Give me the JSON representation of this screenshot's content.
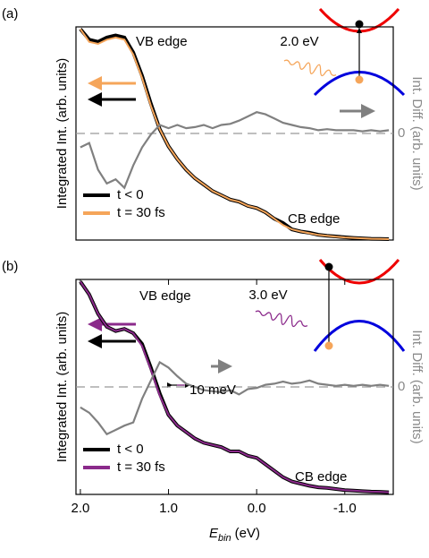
{
  "chart_data": [
    {
      "type": "line",
      "panel_label": "(a)",
      "ylabel": "Integrated Int. (arb. units)",
      "y2label": "Int. Diff. (arb. units)",
      "annotations": [
        "VB edge",
        "CB edge",
        "2.0 eV"
      ],
      "xlim": [
        2.05,
        -1.55
      ],
      "ylim": [
        0,
        1
      ],
      "y2lim": [
        -1,
        1
      ],
      "y2ticks": [
        0
      ],
      "legend": "lower left",
      "x": [
        2.0,
        1.9,
        1.8,
        1.7,
        1.6,
        1.5,
        1.4,
        1.3,
        1.2,
        1.1,
        1.0,
        0.9,
        0.8,
        0.7,
        0.6,
        0.5,
        0.4,
        0.3,
        0.2,
        0.1,
        0.0,
        -0.1,
        -0.2,
        -0.3,
        -0.4,
        -0.5,
        -0.6,
        -0.7,
        -0.8,
        -0.9,
        -1.0,
        -1.1,
        -1.2,
        -1.3,
        -1.4,
        -1.5
      ],
      "series": [
        {
          "name": "t < 0",
          "color": "#000000",
          "values": [
            0.99,
            0.94,
            0.93,
            0.95,
            0.96,
            0.95,
            0.88,
            0.77,
            0.64,
            0.52,
            0.44,
            0.38,
            0.33,
            0.29,
            0.26,
            0.23,
            0.21,
            0.19,
            0.18,
            0.16,
            0.15,
            0.13,
            0.1,
            0.08,
            0.05,
            0.04,
            0.034,
            0.025,
            0.02,
            0.017,
            0.013,
            0.01,
            0.008,
            0.006,
            0.005,
            0.004
          ]
        },
        {
          "name": "t = 30 fs",
          "color": "#f5a55a",
          "values": [
            0.99,
            0.93,
            0.92,
            0.94,
            0.95,
            0.94,
            0.87,
            0.76,
            0.63,
            0.52,
            0.44,
            0.38,
            0.33,
            0.29,
            0.26,
            0.23,
            0.21,
            0.19,
            0.18,
            0.16,
            0.15,
            0.13,
            0.1,
            0.07,
            0.05,
            0.04,
            0.032,
            0.024,
            0.02,
            0.016,
            0.012,
            0.01,
            0.008,
            0.006,
            0.005,
            0.004
          ]
        },
        {
          "name": null,
          "color": "#808080",
          "axis": "y2",
          "values": [
            -0.13,
            -0.09,
            -0.34,
            -0.47,
            -0.43,
            -0.51,
            -0.3,
            -0.13,
            -0.01,
            0.08,
            0.05,
            0.08,
            0.05,
            0.06,
            0.08,
            0.05,
            0.08,
            0.09,
            0.12,
            0.16,
            0.2,
            0.18,
            0.14,
            0.1,
            0.08,
            0.06,
            0.05,
            0.03,
            0.04,
            0.03,
            0.03,
            0.03,
            0.02,
            0.03,
            0.02,
            0.03
          ]
        }
      ]
    },
    {
      "type": "line",
      "panel_label": "(b)",
      "ylabel": "Integrated Int. (arb. units)",
      "y2label": "Int. Diff. (arb. units)",
      "xlabel": {
        "symbol": "E",
        "subscript": "bin",
        "unit": "(eV)"
      },
      "annotations": [
        "VB edge",
        "CB edge",
        "3.0 eV",
        "10 meV"
      ],
      "xlim": [
        2.05,
        -1.55
      ],
      "ylim": [
        0,
        1
      ],
      "y2lim": [
        -1,
        1
      ],
      "y2ticks": [
        0
      ],
      "legend": "lower left",
      "xticks": [
        {
          "value": 2,
          "label": "2.0"
        },
        {
          "value": 1,
          "label": "1.0"
        },
        {
          "value": 0,
          "label": "0.0"
        },
        {
          "value": -1,
          "label": "-1.0"
        }
      ],
      "x": [
        2.0,
        1.9,
        1.8,
        1.7,
        1.6,
        1.5,
        1.4,
        1.3,
        1.2,
        1.1,
        1.0,
        0.9,
        0.8,
        0.7,
        0.6,
        0.5,
        0.4,
        0.3,
        0.2,
        0.1,
        0.0,
        -0.1,
        -0.2,
        -0.3,
        -0.4,
        -0.5,
        -0.6,
        -0.7,
        -0.8,
        -0.9,
        -1.0,
        -1.1,
        -1.2,
        -1.3,
        -1.4,
        -1.5
      ],
      "series": [
        {
          "name": "t < 0",
          "color": "#000000",
          "values": [
            0.99,
            0.93,
            0.84,
            0.78,
            0.76,
            0.77,
            0.75,
            0.7,
            0.59,
            0.47,
            0.37,
            0.32,
            0.29,
            0.26,
            0.24,
            0.23,
            0.22,
            0.2,
            0.2,
            0.18,
            0.17,
            0.14,
            0.11,
            0.08,
            0.06,
            0.05,
            0.04,
            0.033,
            0.03,
            0.025,
            0.02,
            0.018,
            0.015,
            0.013,
            0.012,
            0.01
          ]
        },
        {
          "name": "t = 30 fs",
          "color": "#8b2a8b",
          "values": [
            0.99,
            0.93,
            0.84,
            0.78,
            0.76,
            0.77,
            0.75,
            0.69,
            0.58,
            0.46,
            0.37,
            0.32,
            0.29,
            0.26,
            0.24,
            0.23,
            0.22,
            0.2,
            0.2,
            0.18,
            0.17,
            0.14,
            0.11,
            0.08,
            0.06,
            0.05,
            0.04,
            0.033,
            0.03,
            0.025,
            0.02,
            0.018,
            0.015,
            0.013,
            0.012,
            0.01
          ]
        },
        {
          "name": null,
          "color": "#808080",
          "axis": "y2",
          "values": [
            -0.19,
            -0.24,
            -0.33,
            -0.44,
            -0.4,
            -0.36,
            -0.33,
            -0.11,
            0.06,
            0.23,
            0.18,
            0.1,
            0.03,
            0,
            -0.03,
            -0.04,
            -0.05,
            -0.03,
            -0.07,
            -0.02,
            -0.01,
            0.02,
            0.03,
            0.05,
            0.03,
            0.04,
            0.06,
            0.03,
            0.02,
            0.01,
            0.02,
            0.01,
            0.02,
            0.01,
            0.02,
            0.01
          ]
        }
      ]
    }
  ]
}
